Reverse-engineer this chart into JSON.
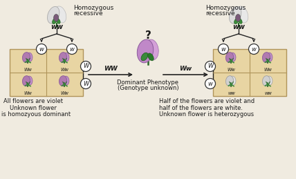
{
  "bg_color": "#f0ebe0",
  "left_label1": "Homozygous",
  "left_label2": "recessive",
  "right_label1": "Homozygous",
  "right_label2": "recessive",
  "left_genotype": "ww",
  "right_genotype": "ww",
  "center_question": "?",
  "center_label1": "Dominant Phenotype",
  "center_label2": "(Genotype unknown)",
  "arrow_left_label": "WW",
  "arrow_right_label": "Ww",
  "bottom_left1": "All flowers are violet",
  "bottom_left2": "Unknown flower",
  "bottom_left3": "is homozyous dominant",
  "bottom_right1": "Half of the flowers are violet and",
  "bottom_right2": "half of the flowers are white.",
  "bottom_right3": "Unknown flower is heterozygous",
  "violet_color": "#b07ab0",
  "violet_dark": "#8a5a9a",
  "white_color": "#d0d0d0",
  "white_dark": "#a0a0a0",
  "box_color": "#e8d5a3",
  "box_edge": "#b0945a",
  "text_color": "#1a1a1a",
  "arrow_color": "#222222",
  "circle_color": "#ffffff",
  "stem_color": "#2a6a2a",
  "leaf_color": "#3a8a3a"
}
